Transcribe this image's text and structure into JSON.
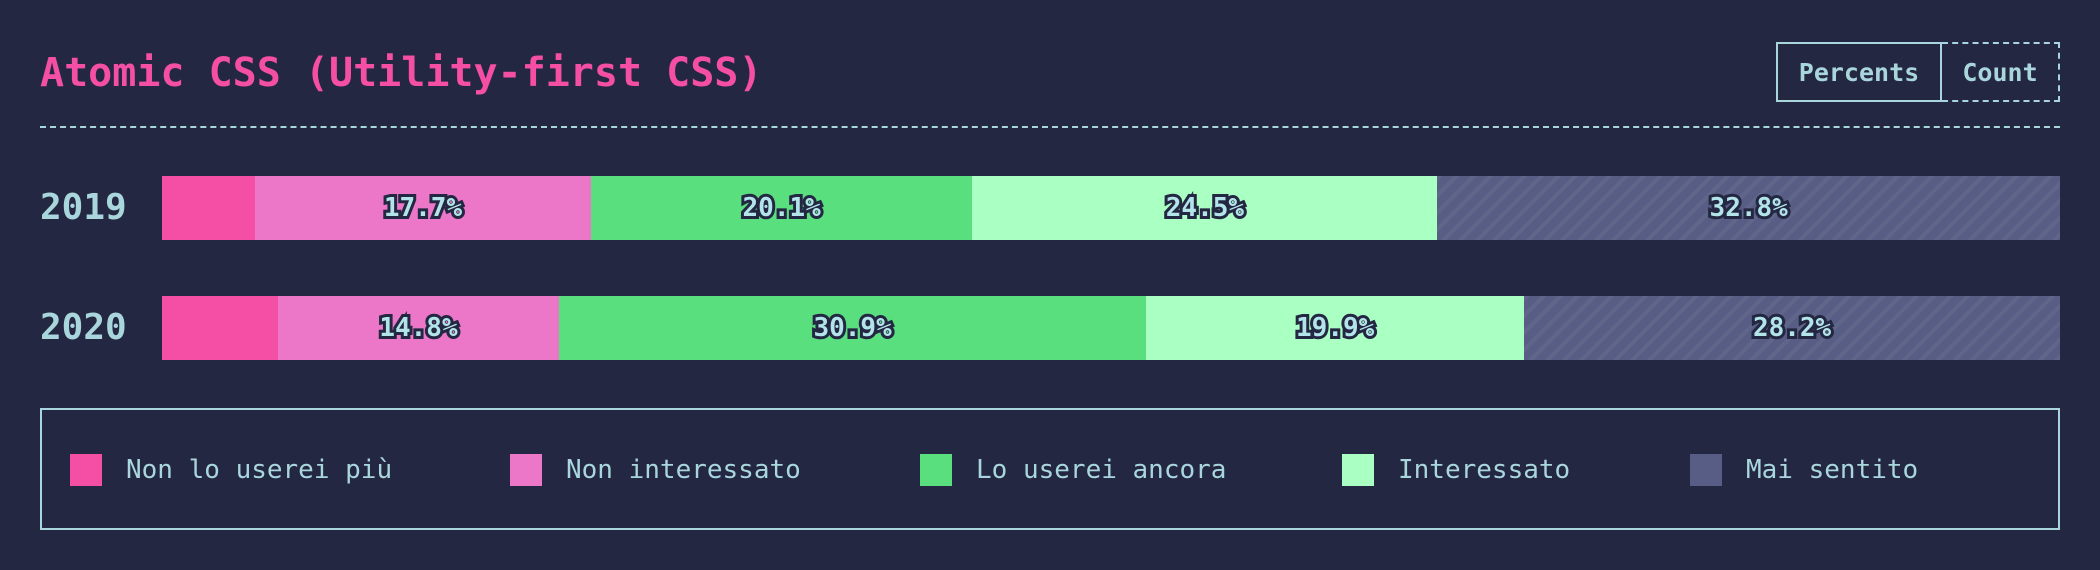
{
  "title": "Atomic CSS (Utility-first CSS)",
  "units": {
    "percents_label": "Percents",
    "count_label": "Count",
    "selected": "Percents"
  },
  "chart_data": {
    "type": "bar",
    "orientation": "horizontal",
    "stacked": true,
    "normalized_to_percent": true,
    "categories": [
      "2019",
      "2020"
    ],
    "series": [
      {
        "name": "Non lo userei più",
        "color": "#f54ea5",
        "values": [
          4.9,
          6.1
        ],
        "labels": [
          "",
          ""
        ]
      },
      {
        "name": "Non interessato",
        "color": "#ec77c9",
        "values": [
          17.7,
          14.8
        ],
        "labels": [
          "17.7%",
          "14.8%"
        ]
      },
      {
        "name": "Lo userei ancora",
        "color": "#5adf7f",
        "values": [
          20.1,
          30.9
        ],
        "labels": [
          "20.1%",
          "30.9%"
        ]
      },
      {
        "name": "Interessato",
        "color": "#aaffc3",
        "values": [
          24.5,
          19.9
        ],
        "labels": [
          "24.5%",
          "19.9%"
        ]
      },
      {
        "name": "Mai sentito",
        "color": "#575d84",
        "values": [
          32.8,
          28.2
        ],
        "labels": [
          "32.8%",
          "28.2%"
        ],
        "hatched": true
      }
    ],
    "xlim": [
      0,
      100
    ],
    "legend_position": "bottom"
  }
}
